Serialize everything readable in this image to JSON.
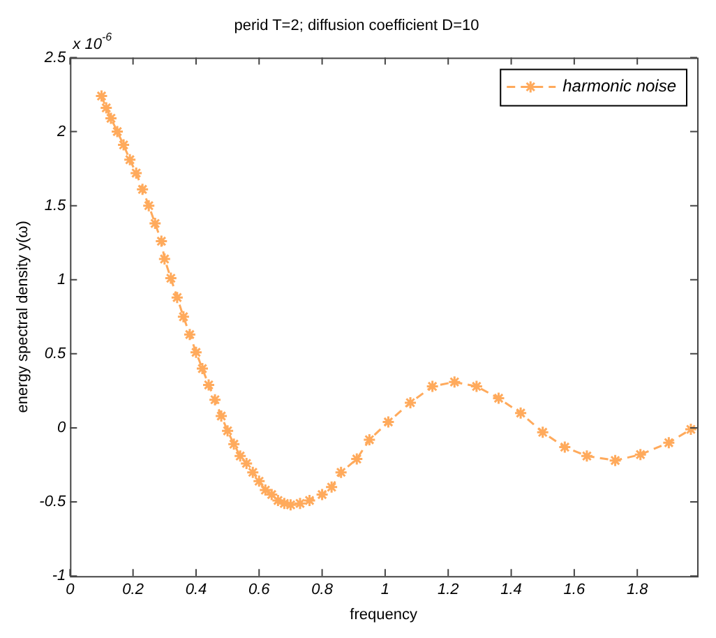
{
  "chart_data": {
    "type": "line",
    "title": "perid T=2; diffusion coefficient D=10",
    "xlabel": "frequency",
    "ylabel": "energy spectral density y(ω)",
    "annotations": [
      "x 10$^{-6}$"
    ],
    "x": [
      0.1,
      0.115,
      0.13,
      0.15,
      0.17,
      0.19,
      0.21,
      0.23,
      0.25,
      0.27,
      0.29,
      0.3,
      0.32,
      0.34,
      0.36,
      0.38,
      0.4,
      0.42,
      0.44,
      0.46,
      0.48,
      0.5,
      0.52,
      0.54,
      0.56,
      0.58,
      0.6,
      0.62,
      0.64,
      0.66,
      0.68,
      0.7,
      0.73,
      0.76,
      0.8,
      0.83,
      0.86,
      0.91,
      0.95,
      1.01,
      1.08,
      1.15,
      1.22,
      1.29,
      1.36,
      1.43,
      1.5,
      1.57,
      1.64,
      1.73,
      1.81,
      1.9,
      1.97
    ],
    "series": [
      {
        "name": "harmonic noise",
        "color": "#ffaa5c",
        "values": [
          2.24,
          2.16,
          2.09,
          2.0,
          1.91,
          1.81,
          1.72,
          1.61,
          1.5,
          1.38,
          1.26,
          1.14,
          1.01,
          0.88,
          0.75,
          0.63,
          0.51,
          0.4,
          0.29,
          0.19,
          0.08,
          -0.02,
          -0.11,
          -0.19,
          -0.24,
          -0.3,
          -0.36,
          -0.42,
          -0.45,
          -0.49,
          -0.51,
          -0.52,
          -0.51,
          -0.49,
          -0.45,
          -0.4,
          -0.3,
          -0.21,
          -0.08,
          0.04,
          0.17,
          0.28,
          0.31,
          0.28,
          0.2,
          0.1,
          -0.03,
          -0.13,
          -0.19,
          -0.22,
          -0.18,
          -0.1,
          -0.01
        ]
      }
    ],
    "xlim": [
      0,
      1.99
    ],
    "xticks": [
      0,
      0.2,
      0.4,
      0.6,
      0.8,
      1,
      1.2,
      1.4,
      1.6,
      1.8
    ],
    "ylim": [
      -1,
      2.5
    ],
    "yticks": [
      -1,
      -0.5,
      0,
      0.5,
      1,
      1.5,
      2,
      2.5
    ],
    "legend": "top right",
    "marker": "cross",
    "line_style": "dashed",
    "grid": false
  }
}
